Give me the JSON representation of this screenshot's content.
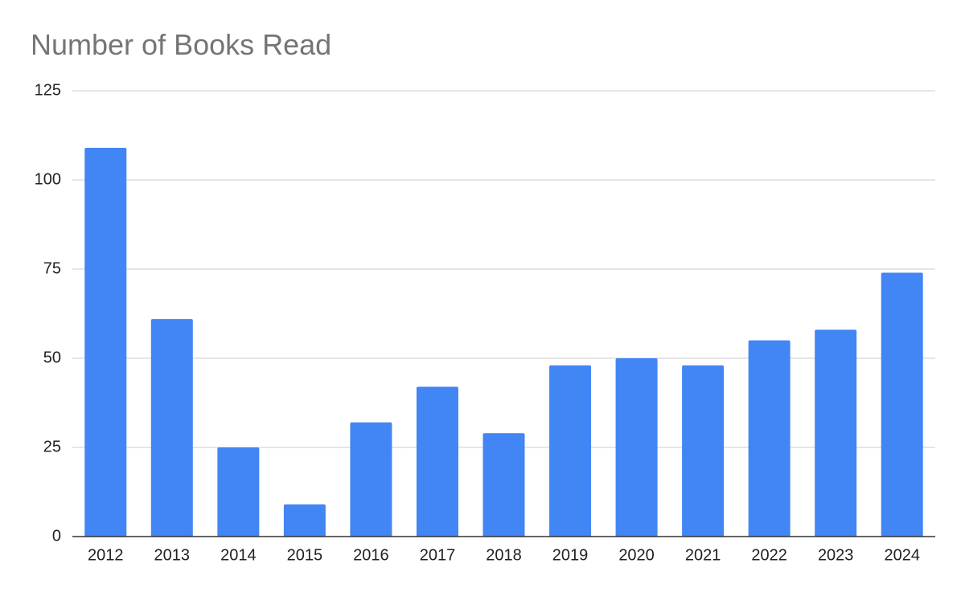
{
  "chart_data": {
    "type": "bar",
    "title": "Number of Books Read",
    "categories": [
      "2012",
      "2013",
      "2014",
      "2015",
      "2016",
      "2017",
      "2018",
      "2019",
      "2020",
      "2021",
      "2022",
      "2023",
      "2024"
    ],
    "values": [
      109,
      61,
      25,
      9,
      32,
      42,
      29,
      48,
      50,
      48,
      55,
      58,
      74
    ],
    "color": "#4285f4",
    "ylim": [
      0,
      125
    ],
    "yticks": [
      0,
      25,
      50,
      75,
      100,
      125
    ],
    "grid": true
  }
}
